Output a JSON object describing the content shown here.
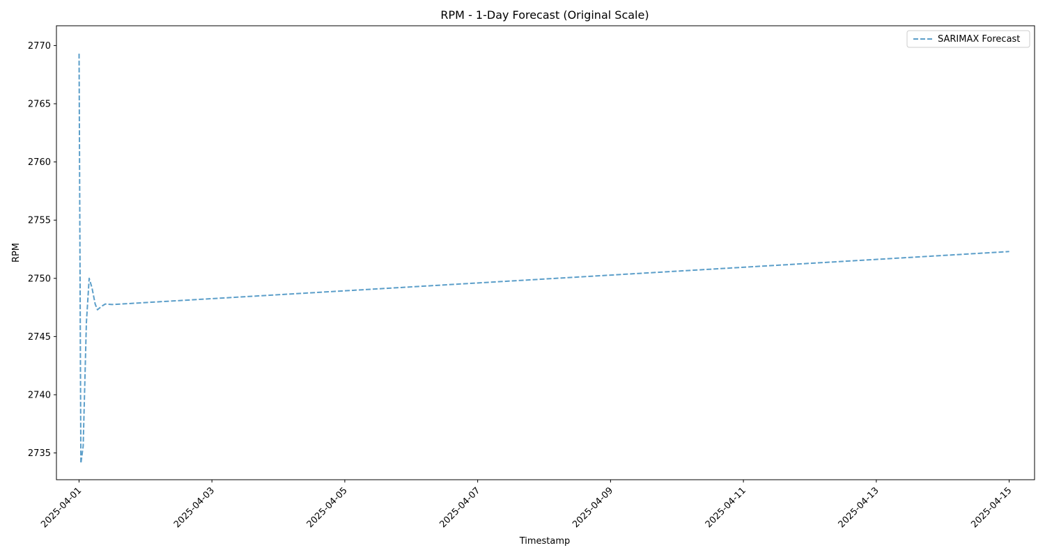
{
  "chart_data": {
    "type": "line",
    "title": "RPM - 1-Day Forecast (Original Scale)",
    "xlabel": "Timestamp",
    "ylabel": "RPM",
    "x_type": "datetime",
    "xlim": [
      "2025-03-31T15:50:00",
      "2025-04-15T09:10:00"
    ],
    "ylim": [
      2732.7,
      2771.7
    ],
    "x_ticks": [
      "2025-04-01",
      "2025-04-03",
      "2025-04-05",
      "2025-04-07",
      "2025-04-09",
      "2025-04-11",
      "2025-04-13",
      "2025-04-15"
    ],
    "y_ticks": [
      2735,
      2740,
      2745,
      2750,
      2755,
      2760,
      2765,
      2770
    ],
    "grid": false,
    "legend": {
      "position": "top-right",
      "entries": [
        "SARIMAX Forecast"
      ]
    },
    "series_color": "#5b9ec9",
    "series": [
      {
        "name": "SARIMAX Forecast",
        "style": "dashed",
        "points": [
          {
            "x": "2025-04-01T00:00:00",
            "y": 2769.3
          },
          {
            "x": "2025-04-01T00:40:00",
            "y": 2734.1
          },
          {
            "x": "2025-04-01T01:30:00",
            "y": 2735.6
          },
          {
            "x": "2025-04-01T02:40:00",
            "y": 2746.2
          },
          {
            "x": "2025-04-01T03:40:00",
            "y": 2750.0
          },
          {
            "x": "2025-04-01T04:40:00",
            "y": 2749.2
          },
          {
            "x": "2025-04-01T05:50:00",
            "y": 2747.8
          },
          {
            "x": "2025-04-01T06:40:00",
            "y": 2747.3
          },
          {
            "x": "2025-04-01T08:10:00",
            "y": 2747.6
          },
          {
            "x": "2025-04-01T09:30:00",
            "y": 2747.8
          },
          {
            "x": "2025-04-01T12:00:00",
            "y": 2747.75
          },
          {
            "x": "2025-04-15T00:00:00",
            "y": 2752.3
          }
        ]
      }
    ]
  }
}
